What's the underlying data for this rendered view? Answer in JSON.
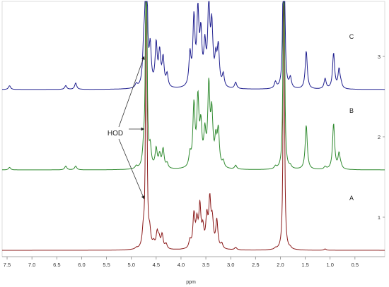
{
  "chart_data": {
    "type": "line",
    "title": "",
    "xlabel": "ppm",
    "ylabel": "",
    "x_axis_reversed": true,
    "xlim": [
      7.6,
      -0.1
    ],
    "x_ticks": [
      "7.5",
      "7.0",
      "6.5",
      "6.0",
      "5.5",
      "5.0",
      "4.5",
      "4.0",
      "3.5",
      "3.0",
      "2.5",
      "2.0",
      "1.5",
      "1.0",
      "0.5"
    ],
    "right_ticks": [
      "1",
      "2",
      "3"
    ],
    "annotation": "HOD",
    "annotation_points_at_ppm": 4.7,
    "grid": false,
    "legend": "none",
    "series": [
      {
        "name": "A",
        "color": "#8b1a1a",
        "baseline": 0.0,
        "points": [
          [
            7.45,
            0.0
          ],
          [
            6.32,
            0.0
          ],
          [
            6.12,
            0.0
          ],
          [
            4.9,
            0.01
          ],
          [
            4.76,
            0.12
          ],
          [
            4.7,
            3.2
          ],
          [
            4.63,
            0.12
          ],
          [
            4.55,
            0.04
          ],
          [
            4.48,
            0.12
          ],
          [
            4.44,
            0.07
          ],
          [
            4.38,
            0.11
          ],
          [
            4.3,
            0.04
          ],
          [
            3.82,
            0.06
          ],
          [
            3.74,
            0.26
          ],
          [
            3.68,
            0.19
          ],
          [
            3.62,
            0.32
          ],
          [
            3.56,
            0.14
          ],
          [
            3.48,
            0.23
          ],
          [
            3.42,
            0.36
          ],
          [
            3.37,
            0.2
          ],
          [
            3.28,
            0.22
          ],
          [
            3.18,
            0.04
          ],
          [
            2.9,
            0.02
          ],
          [
            2.1,
            0.01
          ],
          [
            1.93,
            3.2
          ],
          [
            1.8,
            0.01
          ],
          [
            1.1,
            0.01
          ],
          [
            0.8,
            0.0
          ]
        ]
      },
      {
        "name": "B",
        "color": "#2f8a2f",
        "baseline": 1.0,
        "points": [
          [
            7.45,
            0.02
          ],
          [
            6.32,
            0.03
          ],
          [
            6.12,
            0.03
          ],
          [
            4.9,
            0.02
          ],
          [
            4.75,
            0.15
          ],
          [
            4.7,
            3.2
          ],
          [
            4.62,
            0.15
          ],
          [
            4.5,
            0.15
          ],
          [
            4.43,
            0.1
          ],
          [
            4.36,
            0.15
          ],
          [
            4.28,
            0.04
          ],
          [
            3.82,
            0.1
          ],
          [
            3.74,
            0.48
          ],
          [
            3.66,
            0.52
          ],
          [
            3.6,
            0.3
          ],
          [
            3.52,
            0.25
          ],
          [
            3.44,
            0.62
          ],
          [
            3.38,
            0.4
          ],
          [
            3.3,
            0.2
          ],
          [
            3.25,
            0.28
          ],
          [
            3.15,
            0.05
          ],
          [
            2.9,
            0.03
          ],
          [
            2.1,
            0.02
          ],
          [
            1.93,
            3.2
          ],
          [
            1.8,
            0.02
          ],
          [
            1.48,
            0.35
          ],
          [
            1.1,
            0.02
          ],
          [
            0.93,
            0.36
          ],
          [
            0.82,
            0.12
          ],
          [
            0.78,
            0.02
          ]
        ]
      },
      {
        "name": "C",
        "color": "#1f1f8f",
        "baseline": 2.0,
        "points": [
          [
            7.45,
            0.03
          ],
          [
            6.32,
            0.03
          ],
          [
            6.12,
            0.05
          ],
          [
            4.9,
            0.03
          ],
          [
            4.75,
            0.3
          ],
          [
            4.7,
            3.2
          ],
          [
            4.62,
            0.3
          ],
          [
            4.5,
            0.33
          ],
          [
            4.43,
            0.26
          ],
          [
            4.36,
            0.22
          ],
          [
            4.28,
            0.1
          ],
          [
            3.82,
            0.25
          ],
          [
            3.74,
            0.52
          ],
          [
            3.66,
            0.56
          ],
          [
            3.6,
            0.38
          ],
          [
            3.52,
            0.3
          ],
          [
            3.44,
            0.64
          ],
          [
            3.38,
            0.45
          ],
          [
            3.3,
            0.2
          ],
          [
            3.25,
            0.3
          ],
          [
            3.15,
            0.1
          ],
          [
            2.9,
            0.05
          ],
          [
            2.1,
            0.05
          ],
          [
            1.93,
            3.2
          ],
          [
            1.8,
            0.08
          ],
          [
            1.48,
            0.3
          ],
          [
            1.1,
            0.08
          ],
          [
            0.93,
            0.28
          ],
          [
            0.82,
            0.15
          ],
          [
            0.78,
            0.03
          ]
        ]
      }
    ]
  }
}
